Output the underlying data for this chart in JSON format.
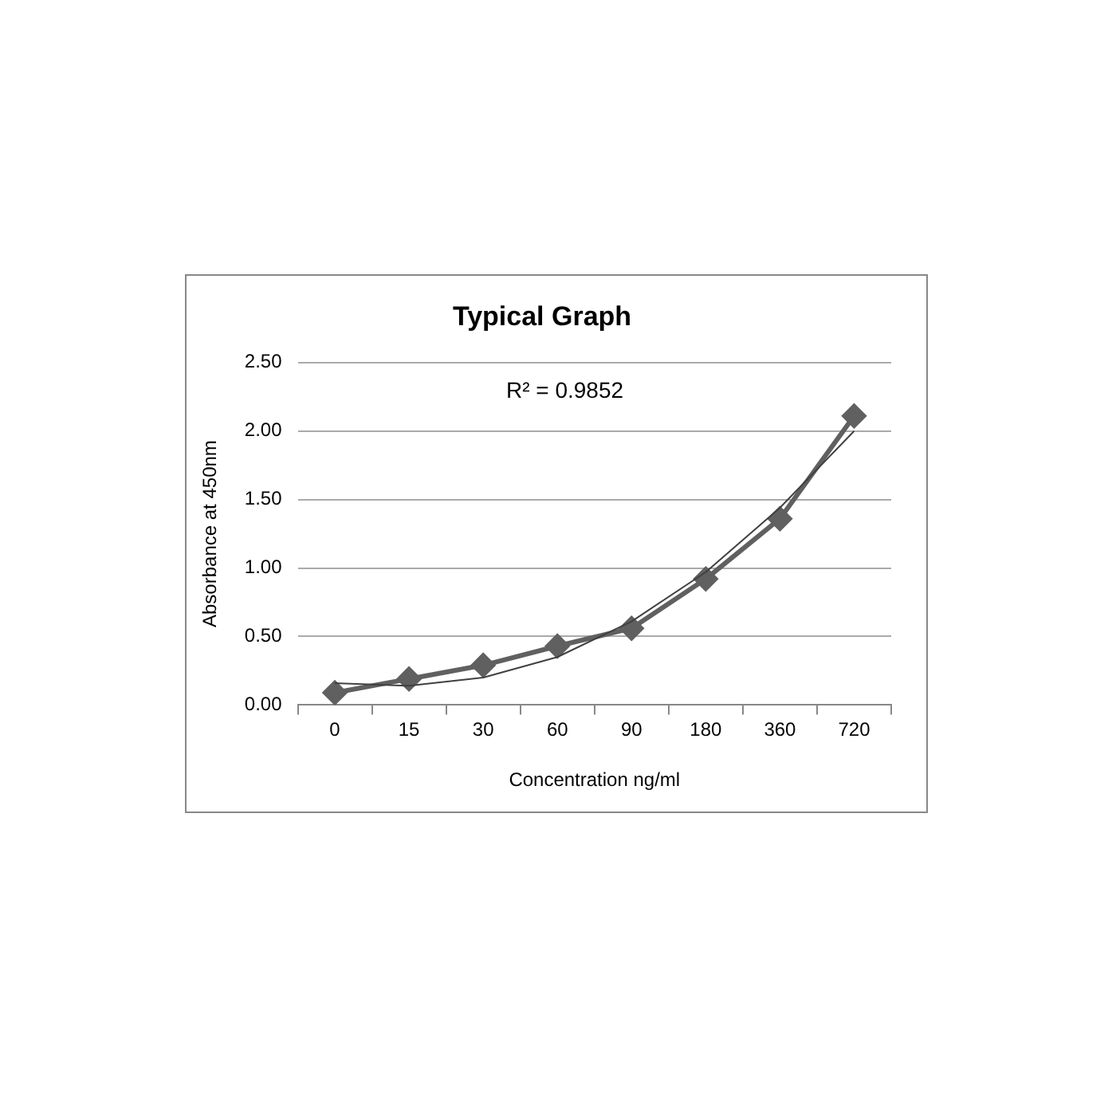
{
  "chart_data": {
    "type": "line",
    "title": "Typical Graph",
    "xlabel": "Concentration ng/ml",
    "ylabel": "Absorbance at 450nm",
    "categories": [
      "0",
      "15",
      "30",
      "60",
      "90",
      "180",
      "360",
      "720"
    ],
    "series": [
      {
        "type": "line",
        "color": "#606060",
        "values": [
          0.09,
          0.19,
          0.29,
          0.43,
          0.56,
          0.92,
          1.36,
          2.11
        ],
        "marker": "diamond"
      },
      {
        "type": "line",
        "color": "#404040",
        "values": [
          0.16,
          0.14,
          0.2,
          0.35,
          0.61,
          0.97,
          1.44,
          2.0
        ],
        "marker": "none"
      }
    ],
    "ylim": [
      0,
      2.5
    ],
    "yticks": [
      {
        "value": 0,
        "label": "0.00"
      },
      {
        "value": 0.5,
        "label": "0.50"
      },
      {
        "value": 1,
        "label": "1.00"
      },
      {
        "value": 1.5,
        "label": "1.50"
      },
      {
        "value": 2,
        "label": "2.00"
      },
      {
        "value": 2.5,
        "label": "2.50"
      }
    ],
    "grid": "y",
    "legend": false,
    "annotations": [
      "R² = 0.9852"
    ]
  }
}
